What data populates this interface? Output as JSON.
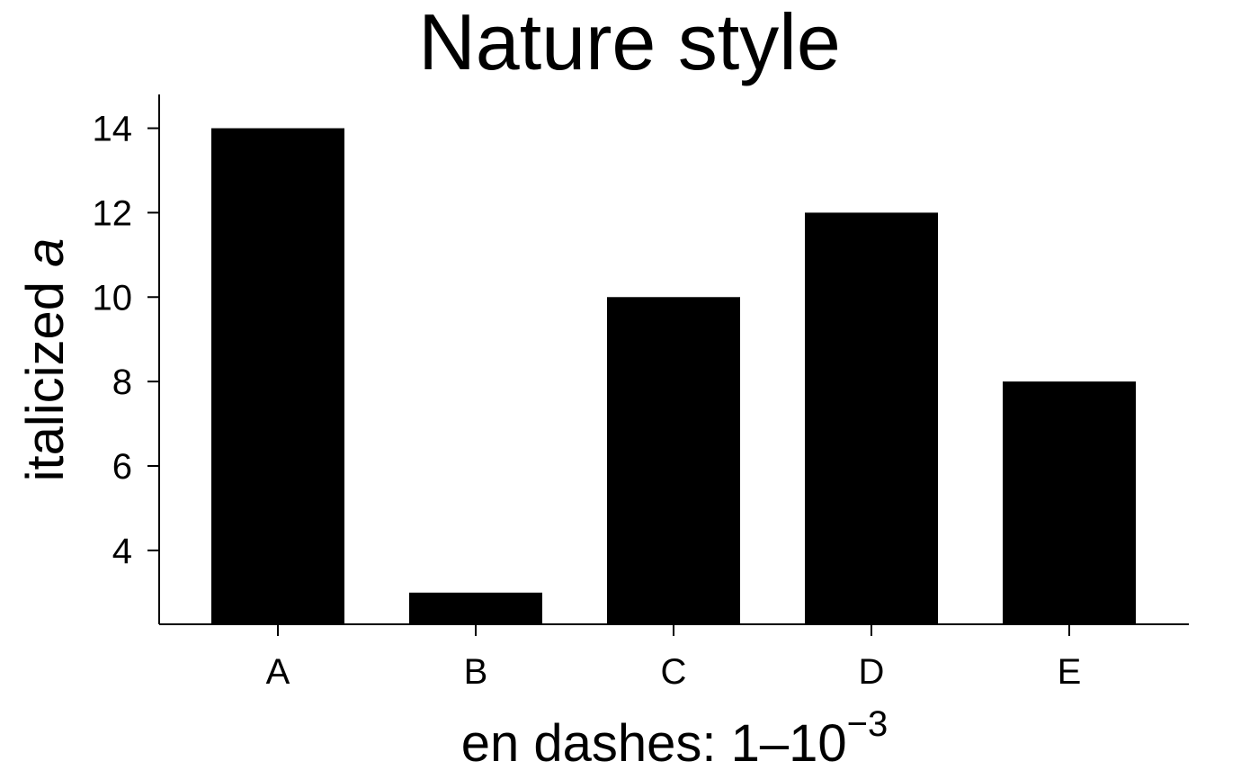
{
  "chart_data": {
    "type": "bar",
    "title": "Nature style",
    "xlabel": {
      "main": "en dashes: 1–10",
      "superscript": "−3"
    },
    "ylabel": {
      "prefix": "italicized ",
      "italic": "a"
    },
    "categories": [
      "A",
      "B",
      "C",
      "D",
      "E"
    ],
    "values": [
      14,
      3,
      10,
      12,
      8
    ],
    "ylim": [
      2.25,
      14.8
    ],
    "yticks": [
      4,
      6,
      8,
      10,
      12,
      14
    ],
    "bar_color": "#000000",
    "grid": false
  }
}
